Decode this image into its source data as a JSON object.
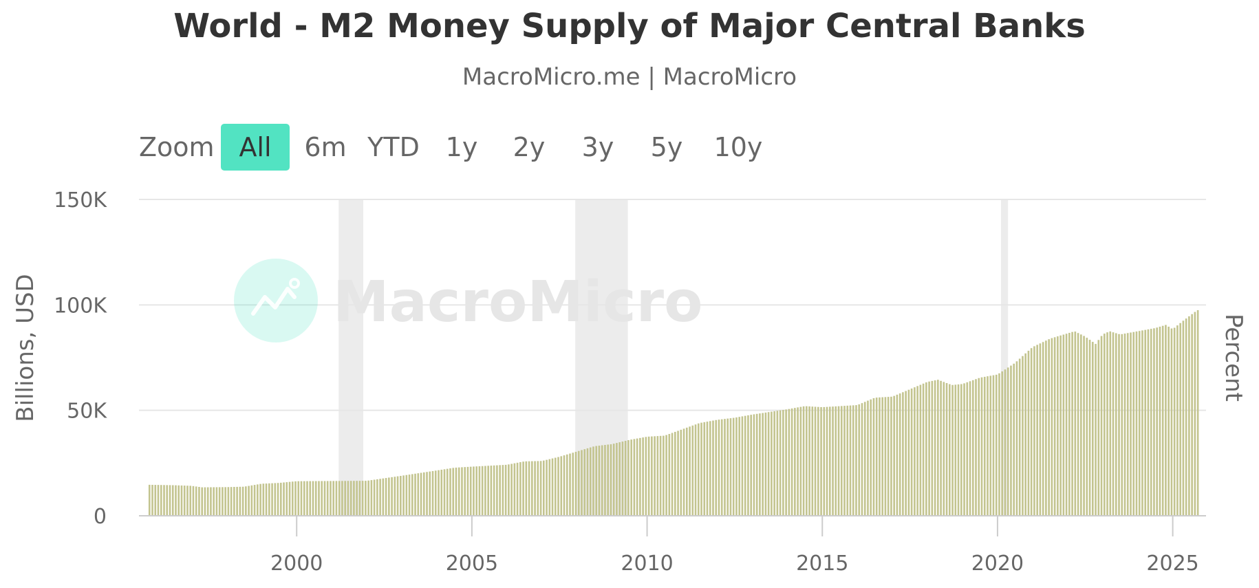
{
  "header": {
    "title": "World - M2 Money Supply of Major Central Banks",
    "subtitle": "MacroMicro.me | MacroMicro"
  },
  "zoom": {
    "label": "Zoom",
    "buttons": [
      "All",
      "6m",
      "YTD",
      "1y",
      "2y",
      "3y",
      "5y",
      "10y"
    ],
    "active": "All"
  },
  "watermark": {
    "text": "MacroMicro",
    "color": "#52e3c2"
  },
  "colors": {
    "bar": "#c3c48f",
    "recession": "#ececec",
    "grid": "#e6e6e6",
    "accent": "#52e3c2"
  },
  "chart_data": {
    "type": "bar",
    "title": "World - M2 Money Supply of Major Central Banks",
    "subtitle": "MacroMicro.me | MacroMicro",
    "ylabel": "Billions, USD",
    "y2label": "Percent",
    "yunit": "Billions, USD",
    "ylim": [
      0,
      150000
    ],
    "yticks": [
      0,
      50000,
      100000,
      150000
    ],
    "ytick_labels": [
      "0",
      "50K",
      "100K",
      "150K"
    ],
    "xlim": [
      1995.5,
      2025.95
    ],
    "xticks": [
      2000,
      2005,
      2010,
      2015,
      2020,
      2025
    ],
    "xtick_labels": [
      "2000",
      "2005",
      "2010",
      "2015",
      "2020",
      "2025"
    ],
    "recessions": [
      [
        2001.2,
        2001.9
      ],
      [
        2007.95,
        2009.45
      ],
      [
        2020.1,
        2020.3
      ]
    ],
    "series": [
      {
        "name": "M2 Money Supply of Major Central Banks",
        "frequency": "monthly",
        "start": 1995.8,
        "end": 2025.7,
        "anchors": [
          [
            1995.8,
            14700
          ],
          [
            1996.5,
            14500
          ],
          [
            1997.0,
            14200
          ],
          [
            1997.3,
            13500
          ],
          [
            1998.0,
            13600
          ],
          [
            1998.5,
            13800
          ],
          [
            1999.0,
            15200
          ],
          [
            1999.5,
            15600
          ],
          [
            2000.0,
            16400
          ],
          [
            2001.0,
            16500
          ],
          [
            2002.0,
            16600
          ],
          [
            2002.5,
            17800
          ],
          [
            2003.0,
            19000
          ],
          [
            2004.0,
            21500
          ],
          [
            2004.5,
            22800
          ],
          [
            2005.0,
            23300
          ],
          [
            2006.0,
            24200
          ],
          [
            2006.5,
            25800
          ],
          [
            2007.0,
            26000
          ],
          [
            2007.5,
            28000
          ],
          [
            2008.0,
            30500
          ],
          [
            2008.5,
            33000
          ],
          [
            2009.0,
            34000
          ],
          [
            2009.5,
            36000
          ],
          [
            2010.0,
            37500
          ],
          [
            2010.5,
            38000
          ],
          [
            2011.0,
            41000
          ],
          [
            2011.5,
            44000
          ],
          [
            2012.0,
            45500
          ],
          [
            2012.5,
            46500
          ],
          [
            2013.0,
            48000
          ],
          [
            2014.0,
            50500
          ],
          [
            2014.5,
            52000
          ],
          [
            2015.0,
            51500
          ],
          [
            2016.0,
            52500
          ],
          [
            2016.5,
            56000
          ],
          [
            2017.0,
            56500
          ],
          [
            2017.5,
            60000
          ],
          [
            2018.0,
            63500
          ],
          [
            2018.3,
            64500
          ],
          [
            2018.7,
            62000
          ],
          [
            2019.0,
            62500
          ],
          [
            2019.5,
            65500
          ],
          [
            2020.0,
            67000
          ],
          [
            2020.5,
            72500
          ],
          [
            2021.0,
            80000
          ],
          [
            2021.5,
            84000
          ],
          [
            2022.0,
            86500
          ],
          [
            2022.2,
            87500
          ],
          [
            2022.5,
            85000
          ],
          [
            2022.8,
            81500
          ],
          [
            2023.0,
            86000
          ],
          [
            2023.2,
            87500
          ],
          [
            2023.5,
            86000
          ],
          [
            2024.0,
            87500
          ],
          [
            2024.5,
            89000
          ],
          [
            2024.8,
            90500
          ],
          [
            2025.0,
            88500
          ],
          [
            2025.3,
            92500
          ],
          [
            2025.7,
            97500
          ]
        ]
      }
    ]
  }
}
